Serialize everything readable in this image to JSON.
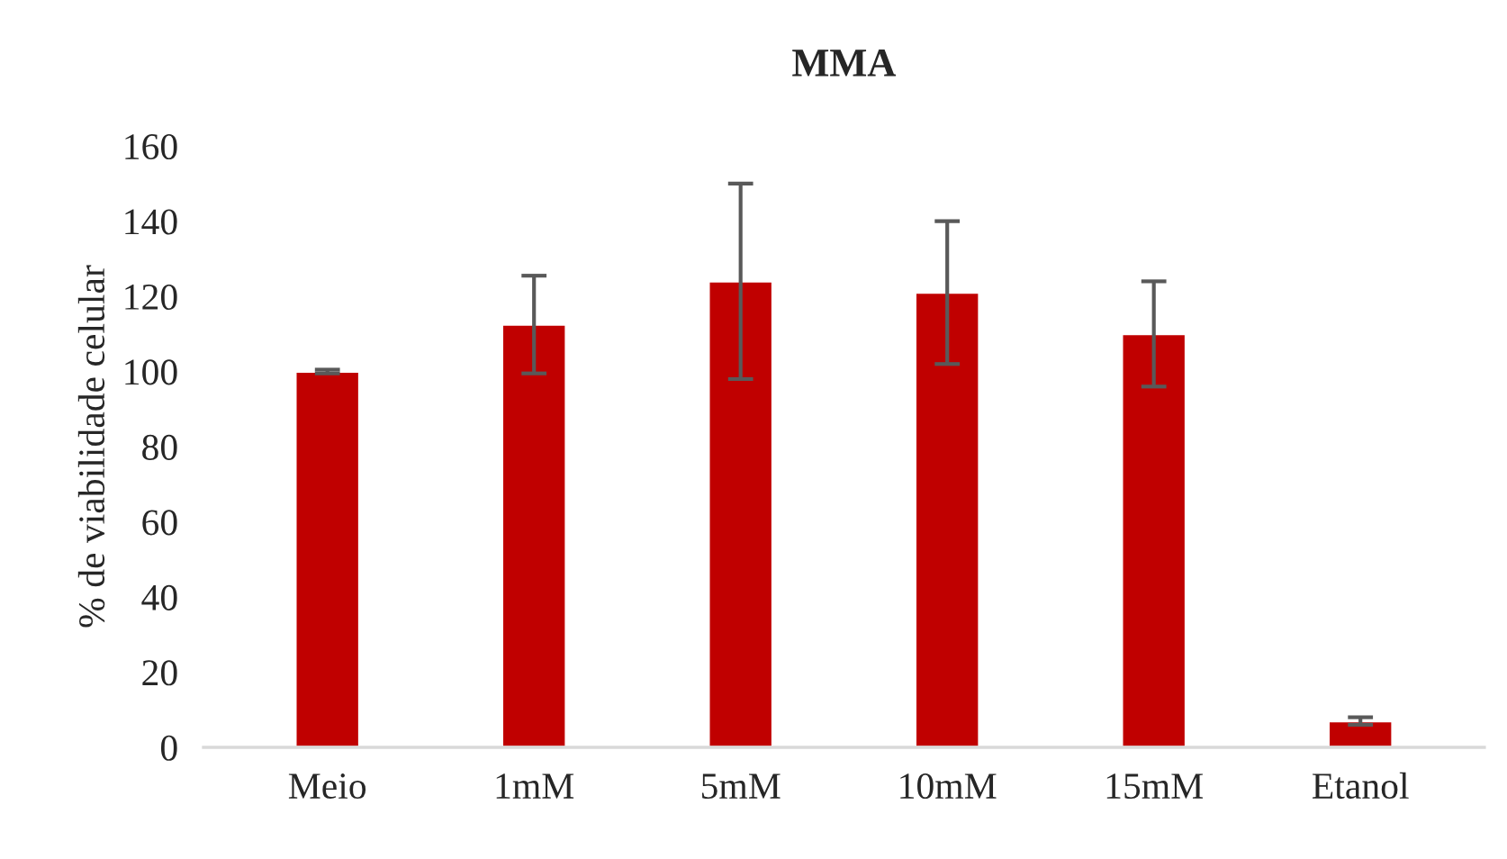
{
  "chart_data": {
    "type": "bar",
    "title": "MMA",
    "ylabel": "% de viabilidade celular",
    "categories": [
      "Meio",
      "1mM",
      "5mM",
      "10mM",
      "15mM",
      "Etanol"
    ],
    "values": [
      100,
      112.5,
      124,
      121,
      110,
      7
    ],
    "errors": [
      0.5,
      13,
      26,
      19,
      14,
      1
    ],
    "color": "#c00000",
    "ylim": [
      0,
      160
    ],
    "yticks": [
      0,
      20,
      40,
      60,
      80,
      100,
      120,
      140,
      160
    ],
    "grid": false,
    "legend": false
  }
}
